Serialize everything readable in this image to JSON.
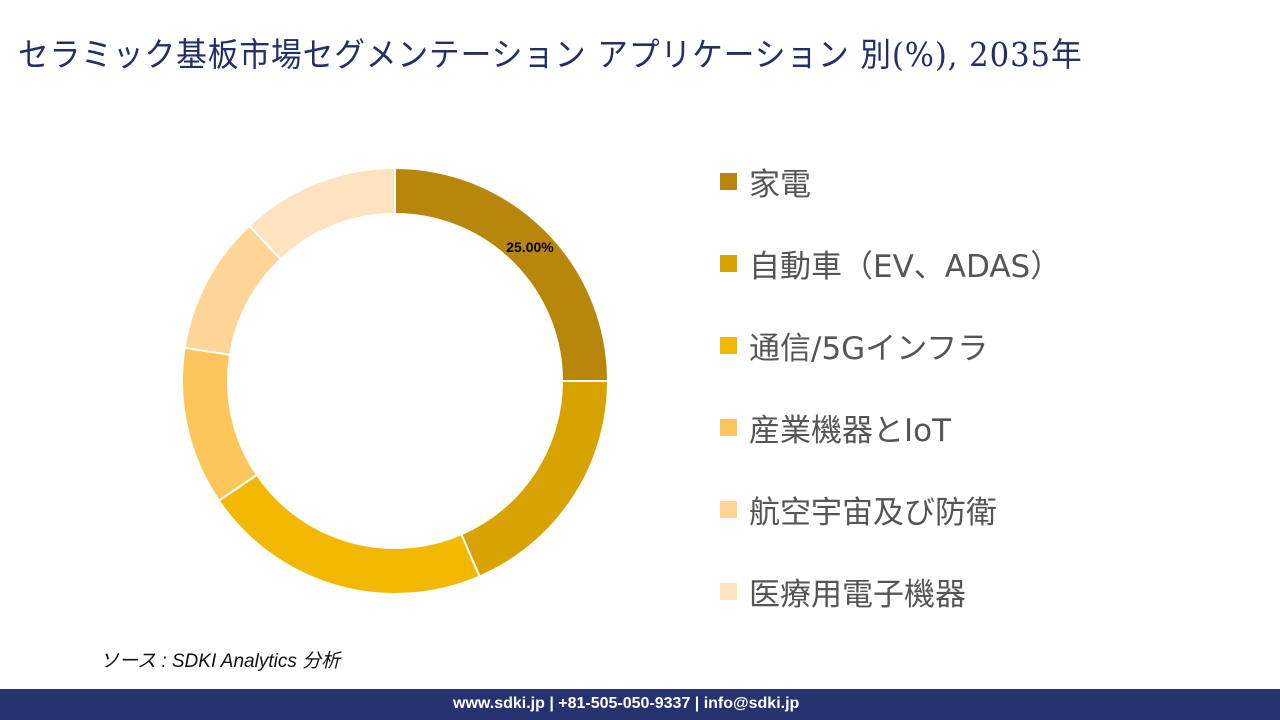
{
  "title": "セラミック基板市場セグメンテーション アプリケーション 別(%), 2035年",
  "chart_data": {
    "type": "pie",
    "donut": true,
    "title": "セラミック基板市場セグメンテーション アプリケーション 別(%), 2035年",
    "categories": [
      "家電",
      "自動車（EV、ADAS）",
      "通信/5Gインフラ",
      "産業機器とIoT",
      "航空宇宙及び防衛",
      "医療用電子機器"
    ],
    "values": [
      25.0,
      18.5,
      22.0,
      12.0,
      10.5,
      12.0
    ],
    "colors": [
      "#b8860b",
      "#d8a200",
      "#f2b800",
      "#fdc65a",
      "#fed597",
      "#ffe2bf"
    ],
    "data_labels": [
      "25.00%",
      "",
      "",
      "",
      "",
      ""
    ],
    "legend_position": "right"
  },
  "source": "ソース : SDKI Analytics 分析",
  "footer": "www.sdki.jp | +81-505-050-9337 | info@sdki.jp"
}
